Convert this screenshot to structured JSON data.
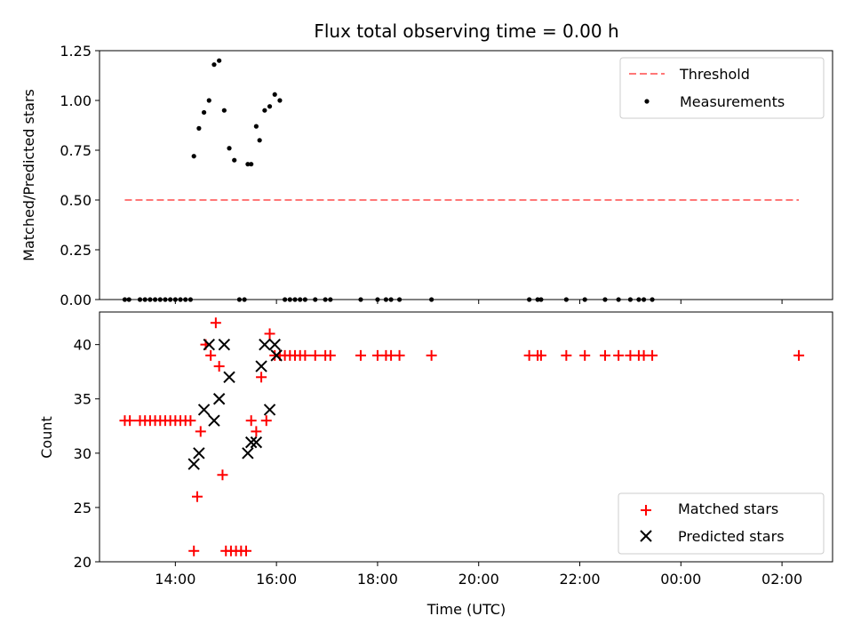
{
  "chart_data": [
    {
      "type": "scatter",
      "title": "Flux total observing time = 0.00 h",
      "xlabel": "",
      "ylabel": "Matched/Predicted stars",
      "ylim": [
        0,
        1.25
      ],
      "xlim": [
        "12:30",
        "03:00"
      ],
      "yticks": [
        0.0,
        0.25,
        0.5,
        0.75,
        1.0,
        1.25
      ],
      "ytick_labels": [
        "0.00",
        "0.25",
        "0.50",
        "0.75",
        "1.00",
        "1.25"
      ],
      "xticks": [
        "14:00",
        "16:00",
        "18:00",
        "20:00",
        "22:00",
        "00:00",
        "02:00"
      ],
      "grid": false,
      "legend": "top-right",
      "threshold": {
        "name": "Threshold",
        "value": 0.5,
        "x_start": "13:00",
        "x_end": "02:20",
        "color": "#ff7777",
        "style": "dashed"
      },
      "series": [
        {
          "name": "Measurements",
          "color": "#000000",
          "marker": "dot",
          "x": [
            "13:00",
            "13:05",
            "13:18",
            "13:24",
            "13:30",
            "13:36",
            "13:42",
            "13:48",
            "13:54",
            "14:00",
            "14:06",
            "14:12",
            "14:18",
            "14:22",
            "14:28",
            "14:34",
            "14:40",
            "14:46",
            "14:52",
            "14:58",
            "15:04",
            "15:10",
            "15:16",
            "15:22",
            "15:26",
            "15:30",
            "15:36",
            "15:40",
            "15:46",
            "15:52",
            "15:58",
            "16:04",
            "16:10",
            "16:16",
            "16:22",
            "16:28",
            "16:34",
            "16:46",
            "16:58",
            "17:04",
            "17:40",
            "18:00",
            "18:10",
            "18:16",
            "18:26",
            "19:04",
            "21:00",
            "21:10",
            "21:14",
            "21:44",
            "22:06",
            "22:30",
            "22:46",
            "23:00",
            "23:10",
            "23:16",
            "23:26"
          ],
          "y": [
            0,
            0,
            0,
            0,
            0,
            0,
            0,
            0,
            0,
            0,
            0,
            0,
            0,
            0.72,
            0.86,
            0.94,
            1.0,
            1.18,
            1.2,
            0.95,
            0.76,
            0.7,
            0,
            0,
            0.68,
            0.68,
            0.87,
            0.8,
            0.95,
            0.97,
            1.03,
            1.0,
            0,
            0,
            0,
            0,
            0,
            0,
            0,
            0,
            0,
            0,
            0,
            0,
            0,
            0,
            0,
            0,
            0,
            0,
            0,
            0,
            0,
            0,
            0,
            0,
            0
          ]
        }
      ]
    },
    {
      "type": "scatter",
      "title": "",
      "xlabel": "Time (UTC)",
      "ylabel": "Count",
      "ylim": [
        20,
        43
      ],
      "xlim": [
        "12:30",
        "03:00"
      ],
      "yticks": [
        20,
        25,
        30,
        35,
        40
      ],
      "ytick_labels": [
        "20",
        "25",
        "30",
        "35",
        "40"
      ],
      "xticks": [
        "14:00",
        "16:00",
        "18:00",
        "20:00",
        "22:00",
        "00:00",
        "02:00"
      ],
      "grid": false,
      "legend": "bottom-right",
      "series": [
        {
          "name": "Matched stars",
          "color": "#ff0000",
          "marker": "plus",
          "x": [
            "13:00",
            "13:06",
            "13:18",
            "13:24",
            "13:30",
            "13:36",
            "13:42",
            "13:48",
            "13:54",
            "14:00",
            "14:06",
            "14:12",
            "14:18",
            "14:22",
            "14:26",
            "14:30",
            "14:36",
            "14:42",
            "14:48",
            "14:52",
            "14:56",
            "15:00",
            "15:06",
            "15:12",
            "15:18",
            "15:24",
            "15:30",
            "15:36",
            "15:42",
            "15:48",
            "15:52",
            "15:58",
            "16:04",
            "16:10",
            "16:16",
            "16:22",
            "16:28",
            "16:34",
            "16:46",
            "16:58",
            "17:04",
            "17:40",
            "18:00",
            "18:10",
            "18:16",
            "18:26",
            "19:04",
            "21:00",
            "21:10",
            "21:14",
            "21:44",
            "22:06",
            "22:30",
            "22:46",
            "23:00",
            "23:10",
            "23:16",
            "23:26",
            "02:20"
          ],
          "y": [
            33,
            33,
            33,
            33,
            33,
            33,
            33,
            33,
            33,
            33,
            33,
            33,
            33,
            21,
            26,
            32,
            40,
            39,
            42,
            38,
            28,
            21,
            21,
            21,
            21,
            21,
            33,
            32,
            37,
            33,
            41,
            39,
            39,
            39,
            39,
            39,
            39,
            39,
            39,
            39,
            39,
            39,
            39,
            39,
            39,
            39,
            39,
            39,
            39,
            39,
            39,
            39,
            39,
            39,
            39,
            39,
            39,
            39,
            39
          ]
        },
        {
          "name": "Predicted stars",
          "color": "#000000",
          "marker": "x",
          "x": [
            "14:22",
            "14:28",
            "14:34",
            "14:40",
            "14:46",
            "14:52",
            "14:58",
            "15:04",
            "15:26",
            "15:30",
            "15:36",
            "15:42",
            "15:46",
            "15:52",
            "15:58",
            "16:00"
          ],
          "y": [
            29,
            30,
            34,
            40,
            33,
            35,
            40,
            37,
            30,
            31,
            31,
            38,
            40,
            34,
            40,
            39
          ]
        }
      ]
    }
  ]
}
